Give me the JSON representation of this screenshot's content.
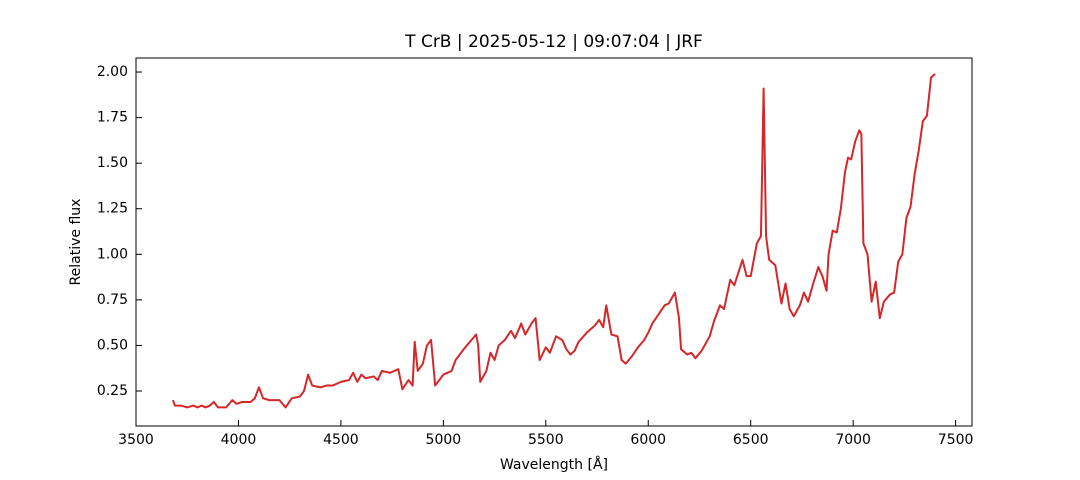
{
  "chart_data": {
    "type": "line",
    "title": "T CrB | 2025-05-12 | 09:07:04 | JRF",
    "x_label": "Wavelength [Å]",
    "y_label": "Relative flux",
    "color": "#d62728",
    "x": [
      3680,
      3690,
      3720,
      3750,
      3780,
      3800,
      3820,
      3840,
      3860,
      3880,
      3900,
      3940,
      3970,
      3990,
      4020,
      4060,
      4080,
      4100,
      4120,
      4150,
      4200,
      4230,
      4260,
      4300,
      4320,
      4340,
      4360,
      4400,
      4430,
      4460,
      4500,
      4540,
      4560,
      4580,
      4600,
      4620,
      4660,
      4680,
      4700,
      4740,
      4780,
      4800,
      4830,
      4850,
      4860,
      4875,
      4900,
      4920,
      4940,
      4960,
      5000,
      5040,
      5060,
      5100,
      5130,
      5160,
      5170,
      5180,
      5210,
      5230,
      5250,
      5270,
      5300,
      5330,
      5350,
      5380,
      5400,
      5430,
      5450,
      5470,
      5500,
      5520,
      5550,
      5580,
      5600,
      5620,
      5640,
      5660,
      5700,
      5740,
      5760,
      5780,
      5795,
      5820,
      5850,
      5870,
      5890,
      5920,
      5950,
      5980,
      6000,
      6020,
      6050,
      6080,
      6100,
      6130,
      6150,
      6160,
      6190,
      6210,
      6230,
      6260,
      6300,
      6320,
      6350,
      6370,
      6400,
      6420,
      6460,
      6480,
      6500,
      6530,
      6550,
      6563,
      6575,
      6590,
      6620,
      6650,
      6670,
      6690,
      6710,
      6740,
      6760,
      6780,
      6800,
      6830,
      6850,
      6870,
      6880,
      6900,
      6920,
      6940,
      6960,
      6975,
      6990,
      7010,
      7030,
      7040,
      7050,
      7070,
      7090,
      7110,
      7130,
      7150,
      7180,
      7200,
      7220,
      7240,
      7260,
      7280,
      7300,
      7320,
      7340,
      7360,
      7380,
      7400
    ],
    "values": [
      0.2,
      0.17,
      0.17,
      0.16,
      0.17,
      0.16,
      0.17,
      0.16,
      0.17,
      0.19,
      0.16,
      0.16,
      0.2,
      0.18,
      0.19,
      0.19,
      0.21,
      0.27,
      0.21,
      0.2,
      0.2,
      0.16,
      0.21,
      0.22,
      0.25,
      0.34,
      0.28,
      0.27,
      0.28,
      0.28,
      0.3,
      0.31,
      0.35,
      0.3,
      0.34,
      0.32,
      0.33,
      0.31,
      0.36,
      0.35,
      0.37,
      0.26,
      0.31,
      0.28,
      0.52,
      0.36,
      0.4,
      0.5,
      0.53,
      0.28,
      0.34,
      0.36,
      0.42,
      0.48,
      0.52,
      0.56,
      0.5,
      0.3,
      0.36,
      0.46,
      0.42,
      0.5,
      0.53,
      0.58,
      0.54,
      0.62,
      0.56,
      0.62,
      0.65,
      0.42,
      0.49,
      0.46,
      0.55,
      0.53,
      0.48,
      0.45,
      0.47,
      0.52,
      0.57,
      0.61,
      0.64,
      0.6,
      0.72,
      0.56,
      0.55,
      0.42,
      0.4,
      0.44,
      0.49,
      0.53,
      0.57,
      0.62,
      0.67,
      0.72,
      0.73,
      0.79,
      0.65,
      0.48,
      0.45,
      0.46,
      0.43,
      0.47,
      0.55,
      0.63,
      0.72,
      0.7,
      0.86,
      0.83,
      0.97,
      0.88,
      0.88,
      1.06,
      1.1,
      1.91,
      1.1,
      0.97,
      0.94,
      0.73,
      0.84,
      0.7,
      0.66,
      0.72,
      0.79,
      0.74,
      0.82,
      0.93,
      0.88,
      0.8,
      1.0,
      1.13,
      1.12,
      1.25,
      1.45,
      1.53,
      1.52,
      1.62,
      1.68,
      1.66,
      1.06,
      1.0,
      0.74,
      0.85,
      0.65,
      0.74,
      0.78,
      0.79,
      0.96,
      1.0,
      1.2,
      1.26,
      1.44,
      1.57,
      1.73,
      1.76,
      1.97,
      1.99
    ],
    "xlim": [
      3500,
      7580
    ],
    "xticks": [
      3500,
      4000,
      4500,
      5000,
      5500,
      6000,
      6500,
      7000,
      7500
    ],
    "ylim": [
      0.058,
      2.077
    ],
    "yticks": [
      {
        "value": 0.25,
        "label": "0.25"
      },
      {
        "value": 0.5,
        "label": "0.50"
      },
      {
        "value": 0.75,
        "label": "0.75"
      },
      {
        "value": 1.0,
        "label": "1.00"
      },
      {
        "value": 1.25,
        "label": "1.25"
      },
      {
        "value": 1.5,
        "label": "1.50"
      },
      {
        "value": 1.75,
        "label": "1.75"
      },
      {
        "value": 2.0,
        "label": "2.00"
      }
    ],
    "grid": false
  }
}
